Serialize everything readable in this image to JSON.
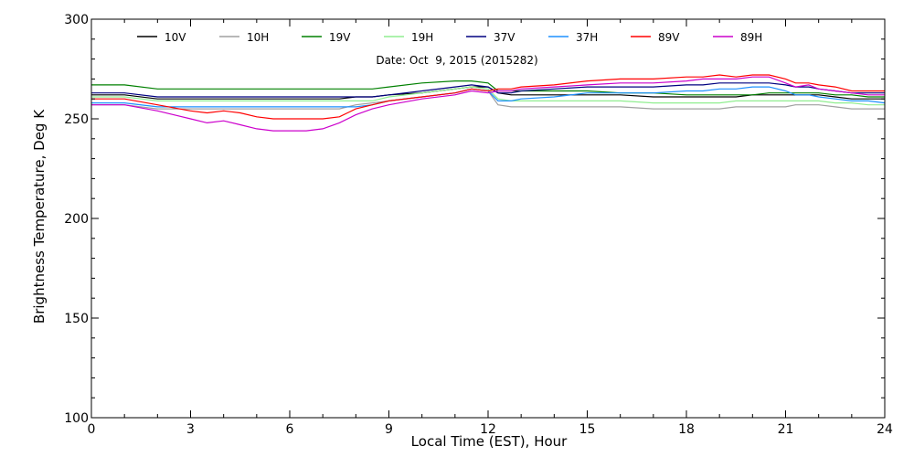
{
  "chart_data": {
    "type": "line",
    "title": "",
    "subtitle": "Date: Oct  9, 2015 (2015282)",
    "xlabel": "Local Time (EST), Hour",
    "ylabel": "Brightness Temperature, Deg K",
    "xlim": [
      0,
      24
    ],
    "ylim": [
      100,
      300
    ],
    "xticks": [
      0,
      3,
      6,
      9,
      12,
      15,
      18,
      21,
      24
    ],
    "yticks": [
      100,
      150,
      200,
      250,
      300
    ],
    "grid": false,
    "legend_position": "top",
    "x": [
      0,
      1,
      2,
      3,
      3.5,
      4,
      4.5,
      5,
      5.5,
      6,
      6.5,
      7,
      7.5,
      8,
      8.5,
      9,
      10,
      11,
      11.5,
      12,
      12.3,
      12.7,
      13,
      14,
      15,
      16,
      17,
      18,
      18.5,
      19,
      19.5,
      20,
      20.5,
      21,
      21.3,
      21.7,
      22,
      22.5,
      23,
      23.5,
      24
    ],
    "series": [
      {
        "name": "10V",
        "color": "#000000",
        "values": [
          262,
          262,
          260,
          260,
          260,
          260,
          260,
          260,
          260,
          260,
          260,
          260,
          260,
          261,
          261,
          262,
          263,
          265,
          266,
          266,
          263,
          262,
          262,
          262,
          262,
          262,
          261,
          261,
          261,
          261,
          261,
          262,
          262,
          262,
          262,
          262,
          262,
          261,
          260,
          260,
          260
        ]
      },
      {
        "name": "10H",
        "color": "#a0a0a0",
        "values": [
          257,
          257,
          255,
          255,
          255,
          255,
          255,
          255,
          255,
          255,
          255,
          255,
          255,
          257,
          258,
          259,
          261,
          263,
          265,
          264,
          257,
          256,
          256,
          256,
          256,
          256,
          255,
          255,
          255,
          255,
          256,
          256,
          256,
          256,
          257,
          257,
          257,
          256,
          255,
          255,
          255
        ]
      },
      {
        "name": "19V",
        "color": "#008000",
        "values": [
          267,
          267,
          265,
          265,
          265,
          265,
          265,
          265,
          265,
          265,
          265,
          265,
          265,
          265,
          265,
          266,
          268,
          269,
          269,
          268,
          264,
          264,
          264,
          264,
          264,
          263,
          263,
          262,
          262,
          262,
          262,
          262,
          263,
          263,
          263,
          263,
          263,
          262,
          262,
          261,
          261
        ]
      },
      {
        "name": "19H",
        "color": "#90ee90",
        "values": [
          261,
          261,
          259,
          259,
          259,
          259,
          259,
          259,
          259,
          259,
          259,
          259,
          259,
          259,
          259,
          261,
          263,
          265,
          266,
          265,
          260,
          259,
          259,
          259,
          259,
          259,
          258,
          258,
          258,
          258,
          259,
          259,
          259,
          259,
          259,
          259,
          259,
          258,
          258,
          257,
          257
        ]
      },
      {
        "name": "37V",
        "color": "#000080",
        "values": [
          263,
          263,
          261,
          261,
          261,
          261,
          261,
          261,
          261,
          261,
          261,
          261,
          261,
          261,
          261,
          262,
          264,
          266,
          267,
          266,
          263,
          263,
          264,
          265,
          266,
          266,
          266,
          267,
          267,
          268,
          268,
          268,
          268,
          267,
          266,
          266,
          265,
          264,
          263,
          263,
          263
        ]
      },
      {
        "name": "37H",
        "color": "#1e90ff",
        "values": [
          258,
          258,
          256,
          256,
          256,
          256,
          256,
          256,
          256,
          256,
          256,
          256,
          256,
          256,
          257,
          259,
          261,
          263,
          265,
          264,
          259,
          259,
          260,
          261,
          263,
          263,
          263,
          264,
          264,
          265,
          265,
          266,
          266,
          264,
          262,
          262,
          261,
          260,
          259,
          259,
          258
        ]
      },
      {
        "name": "89V",
        "color": "#ff0000",
        "values": [
          260,
          260,
          257,
          254,
          253,
          254,
          253,
          251,
          250,
          250,
          250,
          250,
          251,
          255,
          257,
          259,
          261,
          263,
          265,
          264,
          265,
          265,
          266,
          267,
          269,
          270,
          270,
          271,
          271,
          272,
          271,
          272,
          272,
          270,
          268,
          268,
          267,
          266,
          264,
          264,
          264
        ]
      },
      {
        "name": "89H",
        "color": "#cc00cc",
        "values": [
          257,
          257,
          254,
          250,
          248,
          249,
          247,
          245,
          244,
          244,
          244,
          245,
          248,
          252,
          255,
          257,
          260,
          262,
          264,
          263,
          264,
          264,
          265,
          266,
          267,
          268,
          268,
          269,
          270,
          270,
          270,
          271,
          271,
          268,
          266,
          267,
          265,
          264,
          263,
          262,
          262
        ]
      }
    ]
  }
}
